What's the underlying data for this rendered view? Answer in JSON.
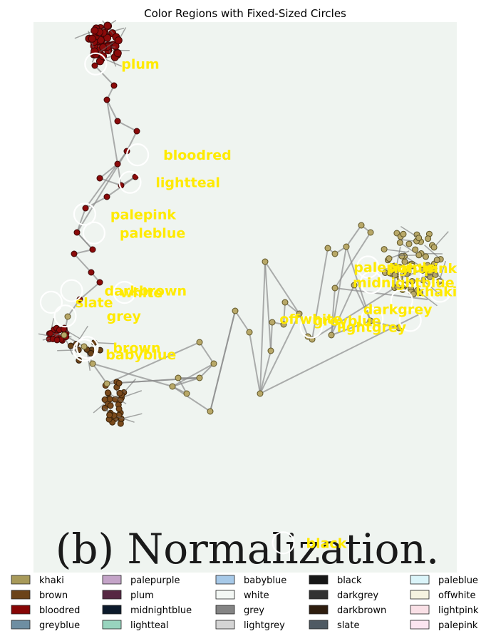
{
  "chart_data": {
    "type": "scatter",
    "title": "Color Regions with Fixed-Sized Circles",
    "image_caption": "(b) Normalization.",
    "xlim": [
      0,
      1
    ],
    "ylim": [
      0,
      1
    ],
    "region_markers": [
      {
        "name": "plum",
        "x": 0.147,
        "y": 0.924
      },
      {
        "name": "bloodred",
        "x": 0.246,
        "y": 0.759
      },
      {
        "name": "lightteal",
        "x": 0.228,
        "y": 0.709
      },
      {
        "name": "palepink",
        "x": 0.121,
        "y": 0.651
      },
      {
        "name": "paleblue",
        "x": 0.143,
        "y": 0.617
      },
      {
        "name": "palepurple",
        "x": 0.79,
        "y": 0.555
      },
      {
        "name": "midnightblue",
        "x": 0.798,
        "y": 0.527
      },
      {
        "name": "lightpink",
        "x": 0.89,
        "y": 0.54
      },
      {
        "name": "khaki",
        "x": 0.96,
        "y": 0.511
      },
      {
        "name": "darkbrown",
        "x": 0.09,
        "y": 0.512
      },
      {
        "name": "white",
        "x": 0.215,
        "y": 0.509
      },
      {
        "name": "slate",
        "x": 0.042,
        "y": 0.491
      },
      {
        "name": "darkgrey",
        "x": 0.87,
        "y": 0.494
      },
      {
        "name": "offwhite",
        "x": 0.8,
        "y": 0.461
      },
      {
        "name": "greyblue",
        "x": 0.89,
        "y": 0.458
      },
      {
        "name": "grey",
        "x": 0.075,
        "y": 0.466
      },
      {
        "name": "lightgrey",
        "x": 0.656,
        "y": 0.446
      },
      {
        "name": "brown",
        "x": 0.127,
        "y": 0.409
      },
      {
        "name": "babyblue",
        "x": 0.12,
        "y": 0.404
      },
      {
        "name": "black",
        "x": 0.59,
        "y": 0.054
      }
    ],
    "legend": [
      {
        "name": "khaki",
        "color": "#a89a5a"
      },
      {
        "name": "brown",
        "color": "#6b4319"
      },
      {
        "name": "bloodred",
        "color": "#870606"
      },
      {
        "name": "greyblue",
        "color": "#6e8ea2"
      },
      {
        "name": "palepurple",
        "color": "#c4a4c8"
      },
      {
        "name": "plum",
        "color": "#562843"
      },
      {
        "name": "midnightblue",
        "color": "#0c1a2b"
      },
      {
        "name": "lightteal",
        "color": "#98d4be"
      },
      {
        "name": "babyblue",
        "color": "#a7c9e8"
      },
      {
        "name": "white",
        "color": "#f3f7f4"
      },
      {
        "name": "grey",
        "color": "#848484"
      },
      {
        "name": "lightgrey",
        "color": "#d4d4d4"
      },
      {
        "name": "black",
        "color": "#161616"
      },
      {
        "name": "darkgrey",
        "color": "#323232"
      },
      {
        "name": "darkbrown",
        "color": "#2e1d0e"
      },
      {
        "name": "slate",
        "color": "#4f5a63"
      },
      {
        "name": "paleblue",
        "color": "#dbf4f9"
      },
      {
        "name": "offwhite",
        "color": "#f5f3e0"
      },
      {
        "name": "lightpink",
        "color": "#f9e0e6"
      },
      {
        "name": "palepink",
        "color": "#fbe5f0"
      }
    ]
  }
}
